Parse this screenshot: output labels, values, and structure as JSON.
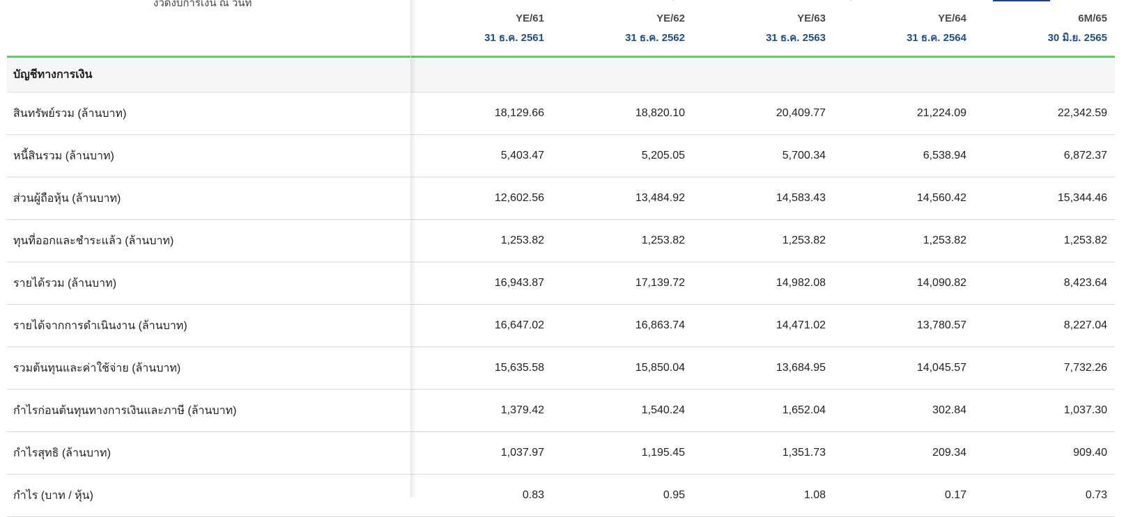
{
  "header": {
    "period_title": "งวดงบการเงิน ณ วันที่",
    "columns": [
      {
        "code": "YE/61",
        "date": "31 ธ.ค. 2561"
      },
      {
        "code": "YE/62",
        "date": "31 ธ.ค. 2562"
      },
      {
        "code": "YE/63",
        "date": "31 ธ.ค. 2563"
      },
      {
        "code": "YE/64",
        "date": "31 ธ.ค. 2564"
      },
      {
        "code": "6M/65",
        "date": "30 มิ.ย. 2565"
      }
    ]
  },
  "section_title": "บัญชีทางการเงิน",
  "rows": [
    {
      "label": "สินทรัพย์รวม (ล้านบาท)",
      "values": [
        "18,129.66",
        "18,820.10",
        "20,409.77",
        "21,224.09",
        "22,342.59"
      ]
    },
    {
      "label": "หนี้สินรวม (ล้านบาท)",
      "values": [
        "5,403.47",
        "5,205.05",
        "5,700.34",
        "6,538.94",
        "6,872.37"
      ]
    },
    {
      "label": "ส่วนผู้ถือหุ้น (ล้านบาท)",
      "values": [
        "12,602.56",
        "13,484.92",
        "14,583.43",
        "14,560.42",
        "15,344.46"
      ]
    },
    {
      "label": "ทุนที่ออกและชำระแล้ว (ล้านบาท)",
      "values": [
        "1,253.82",
        "1,253.82",
        "1,253.82",
        "1,253.82",
        "1,253.82"
      ]
    },
    {
      "label": "รายได้รวม (ล้านบาท)",
      "values": [
        "16,943.87",
        "17,139.72",
        "14,982.08",
        "14,090.82",
        "8,423.64"
      ]
    },
    {
      "label": "รายได้จากการดำเนินงาน (ล้านบาท)",
      "values": [
        "16,647.02",
        "16,863.74",
        "14,471.02",
        "13,780.57",
        "8,227.04"
      ]
    },
    {
      "label": "รวมต้นทุนและค่าใช้จ่าย (ล้านบาท)",
      "values": [
        "15,635.58",
        "15,850.04",
        "13,684.95",
        "14,045.57",
        "7,732.26"
      ]
    },
    {
      "label": "กำไรก่อนต้นทุนทางการเงินและภาษี (ล้านบาท)",
      "values": [
        "1,379.42",
        "1,540.24",
        "1,652.04",
        "302.84",
        "1,037.30"
      ]
    },
    {
      "label": "กำไรสุทธิ (ล้านบาท)",
      "values": [
        "1,037.97",
        "1,195.45",
        "1,351.73",
        "209.34",
        "909.40"
      ]
    },
    {
      "label": "กำไร (บาท / หุ้น)",
      "values": [
        "0.83",
        "0.95",
        "1.08",
        "0.17",
        "0.73"
      ]
    }
  ],
  "colors": {
    "accent_line": "#6cc76a",
    "date_text": "#1f4e8c",
    "section_bg": "#f4f6f8"
  }
}
